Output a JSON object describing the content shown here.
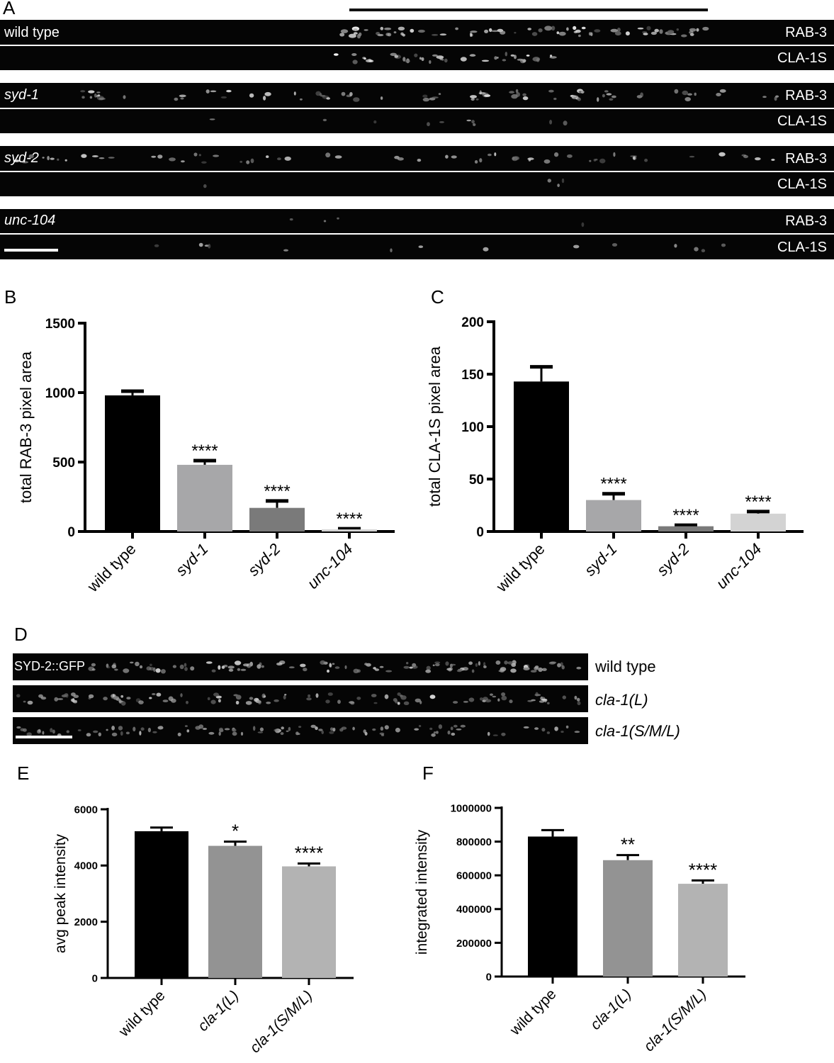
{
  "panelA": {
    "letter": "A",
    "groups": [
      {
        "genotype": "wild type",
        "italic": false,
        "top_channel": "RAB-3",
        "bottom_channel": "CLA-1S"
      },
      {
        "genotype": "syd-1",
        "italic": true,
        "top_channel": "RAB-3",
        "bottom_channel": "CLA-1S"
      },
      {
        "genotype": "syd-2",
        "italic": true,
        "top_channel": "RAB-3",
        "bottom_channel": "CLA-1S"
      },
      {
        "genotype": "unc-104",
        "italic": true,
        "top_channel": "RAB-3",
        "bottom_channel": "CLA-1S"
      }
    ]
  },
  "panelD": {
    "letter": "D",
    "marker": "SYD-2::GFP",
    "rows": [
      {
        "label": "wild type",
        "italic": false
      },
      {
        "label": "cla-1(L)",
        "italic": true
      },
      {
        "label": "cla-1(S/M/L)",
        "italic": true
      }
    ]
  },
  "chart_data": [
    {
      "panel": "B",
      "type": "bar",
      "ylabel": "total RAB-3 pixel area",
      "ylim": [
        0,
        1500
      ],
      "yticks": [
        0,
        500,
        1000,
        1500
      ],
      "categories": [
        "wild type",
        "syd-1",
        "syd-2",
        "unc-104"
      ],
      "italic_categories": [
        false,
        true,
        true,
        true
      ],
      "values": [
        980,
        480,
        170,
        15
      ],
      "errors": [
        30,
        30,
        50,
        5
      ],
      "significance": [
        "",
        "****",
        "****",
        "****"
      ],
      "colors": [
        "#000000",
        "#a7a7a9",
        "#7a7a7a",
        "#d3d3d3"
      ]
    },
    {
      "panel": "C",
      "type": "bar",
      "ylabel": "total CLA-1S pixel area",
      "ylim": [
        0,
        200
      ],
      "yticks": [
        0,
        50,
        100,
        150,
        200
      ],
      "categories": [
        "wild type",
        "syd-1",
        "syd-2",
        "unc-104"
      ],
      "italic_categories": [
        false,
        true,
        true,
        true
      ],
      "values": [
        143,
        30,
        5,
        17
      ],
      "errors": [
        14,
        6,
        1,
        2
      ],
      "significance": [
        "",
        "****",
        "****",
        "****"
      ],
      "colors": [
        "#000000",
        "#a7a7a9",
        "#7a7a7a",
        "#d3d3d3"
      ]
    },
    {
      "panel": "E",
      "type": "bar",
      "ylabel": "avg peak intensity",
      "ylim": [
        0,
        6000
      ],
      "yticks": [
        0,
        2000,
        4000,
        6000
      ],
      "categories": [
        "wild type",
        "cla-1(L)",
        "cla-1(S/M/L)"
      ],
      "italic_categories": [
        false,
        true,
        true
      ],
      "values": [
        5220,
        4700,
        3970
      ],
      "errors": [
        130,
        150,
        100
      ],
      "significance": [
        "",
        "*",
        "****"
      ],
      "colors": [
        "#000000",
        "#939393",
        "#b3b3b3"
      ]
    },
    {
      "panel": "F",
      "type": "bar",
      "ylabel": "integrated intensity",
      "ylim": [
        0,
        1000000
      ],
      "yticks": [
        0,
        200000,
        400000,
        600000,
        800000,
        1000000
      ],
      "categories": [
        "wild type",
        "cla-1(L)",
        "cla-1(S/M/L)"
      ],
      "italic_categories": [
        false,
        true,
        true
      ],
      "values": [
        830000,
        690000,
        550000
      ],
      "errors": [
        38000,
        30000,
        20000
      ],
      "significance": [
        "",
        "**",
        "****"
      ],
      "colors": [
        "#000000",
        "#939393",
        "#b3b3b3"
      ]
    }
  ]
}
